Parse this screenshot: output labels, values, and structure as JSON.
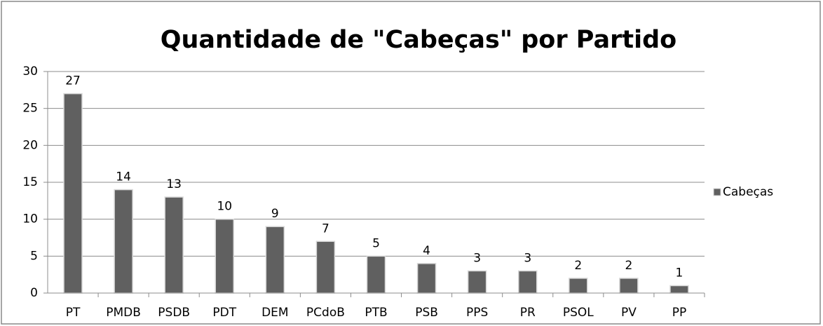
{
  "chart_data": {
    "type": "bar",
    "title": "Quantidade de \"Cabeças\" por Partido",
    "categories": [
      "PT",
      "PMDB",
      "PSDB",
      "PDT",
      "DEM",
      "PCdoB",
      "PTB",
      "PSB",
      "PPS",
      "PR",
      "PSOL",
      "PV",
      "PP"
    ],
    "series": [
      {
        "name": "Cabeças",
        "color": "#606060",
        "values": [
          27,
          14,
          13,
          10,
          9,
          7,
          5,
          4,
          3,
          3,
          2,
          2,
          1
        ]
      }
    ],
    "ylim": [
      0,
      30
    ],
    "yticks": [
      0,
      5,
      10,
      15,
      20,
      25,
      30
    ],
    "grid": true,
    "legend": "right"
  }
}
